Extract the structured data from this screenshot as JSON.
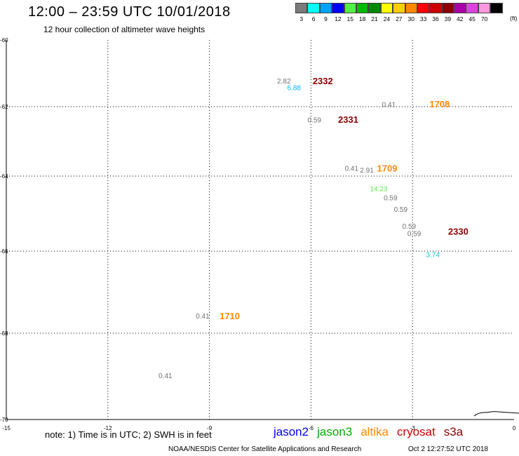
{
  "header": {
    "title": "12:00 – 23:59 UTC 10/01/2018",
    "subtitle": "12 hour collection of altimeter wave heights"
  },
  "legend": {
    "unit": "(ft)",
    "items": [
      {
        "label": "3",
        "color": "#7a7a7a"
      },
      {
        "label": "6",
        "color": "#00ffff"
      },
      {
        "label": "9",
        "color": "#00a2ff"
      },
      {
        "label": "12",
        "color": "#0000ff"
      },
      {
        "label": "15",
        "color": "#55ee44"
      },
      {
        "label": "18",
        "color": "#00bb00"
      },
      {
        "label": "21",
        "color": "#008800"
      },
      {
        "label": "24",
        "color": "#ffff00"
      },
      {
        "label": "27",
        "color": "#ffcc00"
      },
      {
        "label": "30",
        "color": "#ff8800"
      },
      {
        "label": "33",
        "color": "#ff0000"
      },
      {
        "label": "36",
        "color": "#cc0000"
      },
      {
        "label": "39",
        "color": "#880000"
      },
      {
        "label": "42",
        "color": "#aa00aa"
      },
      {
        "label": "45",
        "color": "#dd44dd"
      },
      {
        "label": "70",
        "color": "#ff99dd"
      },
      {
        "label": "",
        "color": "#000000"
      }
    ]
  },
  "map": {
    "x_ticks": [
      {
        "label": "-15",
        "value": -15
      },
      {
        "label": "-12",
        "value": -12
      },
      {
        "label": "-9",
        "value": -9
      },
      {
        "label": "-6",
        "value": -6
      },
      {
        "label": "-3",
        "value": -3
      },
      {
        "label": "0",
        "value": 0
      }
    ],
    "y_ticks": [
      {
        "label": "-60",
        "value": -60
      },
      {
        "label": "-62",
        "value": -62
      },
      {
        "label": "-64",
        "value": -64
      },
      {
        "label": "-66",
        "value": -66
      },
      {
        "label": "-68",
        "value": -68
      },
      {
        "label": "-70",
        "value": -70
      }
    ],
    "wave_heights": [
      {
        "text": "2.82",
        "lon": -6.8,
        "lat": -61.25,
        "color": "#707070"
      },
      {
        "text": "6.88",
        "lon": -6.5,
        "lat": -61.45,
        "color": "#00b8ff"
      },
      {
        "text": "0.41",
        "lon": -3.7,
        "lat": -61.95,
        "color": "#707070"
      },
      {
        "text": "0.59",
        "lon": -5.9,
        "lat": -62.4,
        "color": "#707070"
      },
      {
        "text": "0.41",
        "lon": -4.8,
        "lat": -63.8,
        "color": "#707070"
      },
      {
        "text": "2.91",
        "lon": -4.35,
        "lat": -63.85,
        "color": "#707070"
      },
      {
        "text": "14.23",
        "lon": -4.0,
        "lat": -64.35,
        "color": "#55ee44"
      },
      {
        "text": "0.59",
        "lon": -3.65,
        "lat": -64.6,
        "color": "#707070"
      },
      {
        "text": "0.59",
        "lon": -3.35,
        "lat": -64.9,
        "color": "#707070"
      },
      {
        "text": "0.59",
        "lon": -3.1,
        "lat": -65.35,
        "color": "#707070"
      },
      {
        "text": "0.59",
        "lon": -2.95,
        "lat": -65.55,
        "color": "#707070"
      },
      {
        "text": "3.74",
        "lon": -2.4,
        "lat": -66.1,
        "color": "#00cccc"
      },
      {
        "text": "0.41",
        "lon": -9.2,
        "lat": -67.6,
        "color": "#707070"
      },
      {
        "text": "0.41",
        "lon": -10.3,
        "lat": -69.0,
        "color": "#707070"
      }
    ],
    "pass_times": [
      {
        "text": "2332",
        "lon": -5.65,
        "lat": -61.25,
        "color": "#880000"
      },
      {
        "text": "1708",
        "lon": -2.2,
        "lat": -61.95,
        "color": "#ff8800"
      },
      {
        "text": "2331",
        "lon": -4.9,
        "lat": -62.4,
        "color": "#880000"
      },
      {
        "text": "1709",
        "lon": -3.75,
        "lat": -63.8,
        "color": "#ff8800"
      },
      {
        "text": "2330",
        "lon": -1.65,
        "lat": -65.5,
        "color": "#880000"
      },
      {
        "text": "1710",
        "lon": -8.4,
        "lat": -67.6,
        "color": "#ff8800"
      }
    ]
  },
  "footer": {
    "note": "note: 1) Time is in UTC; 2) SWH is in feet",
    "satellites": [
      {
        "name": "jason2",
        "color": "#0000ff"
      },
      {
        "name": "jason3",
        "color": "#00aa00"
      },
      {
        "name": "altika",
        "color": "#ff8800"
      },
      {
        "name": "cryosat",
        "color": "#cc0000"
      },
      {
        "name": "s3a",
        "color": "#880000"
      }
    ],
    "credit": "NOAA/NESDIS Center for Satellite Applications and Research",
    "timestamp": "Oct  2 12:27:52 UTC 2018"
  }
}
